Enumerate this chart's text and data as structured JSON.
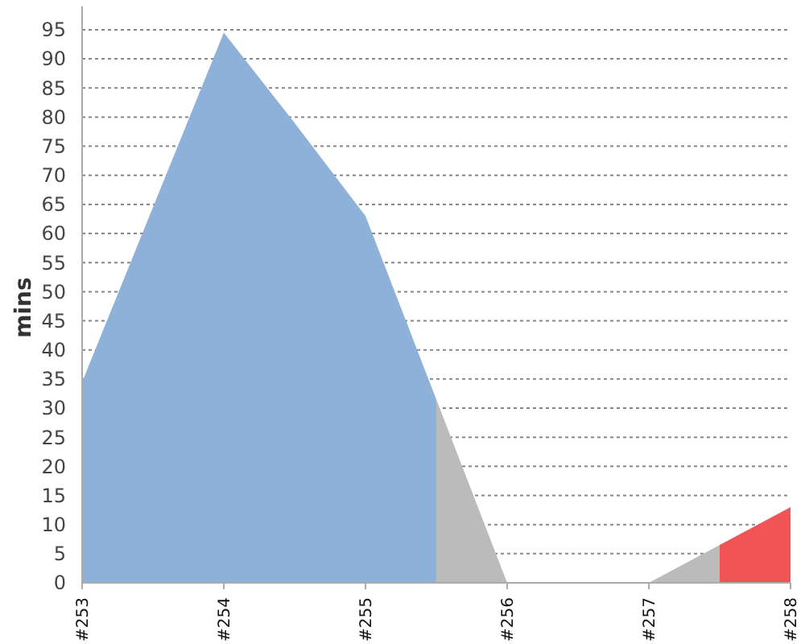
{
  "chart_data": {
    "type": "area",
    "ylabel": "mins",
    "categories": [
      "#253",
      null,
      "#254",
      null,
      "#255",
      null,
      "#256",
      null,
      "#257",
      null,
      "#258"
    ],
    "ylim": [
      0,
      99
    ],
    "yticks": [
      0,
      5,
      10,
      15,
      20,
      25,
      30,
      35,
      40,
      45,
      50,
      55,
      60,
      65,
      70,
      75,
      80,
      85,
      90,
      95
    ],
    "grid": "y",
    "series": [
      {
        "color": "#8eb1da",
        "values": [
          34.5,
          64.5,
          94.5,
          79,
          63,
          31.5,
          null,
          null,
          null,
          null,
          null
        ]
      },
      {
        "color": "#bbbbbb",
        "values": [
          null,
          null,
          null,
          null,
          null,
          31.5,
          0,
          0,
          0,
          6.5,
          null
        ]
      },
      {
        "color": "#f15454",
        "values": [
          null,
          null,
          null,
          null,
          null,
          null,
          null,
          null,
          null,
          6.5,
          13
        ]
      }
    ]
  }
}
